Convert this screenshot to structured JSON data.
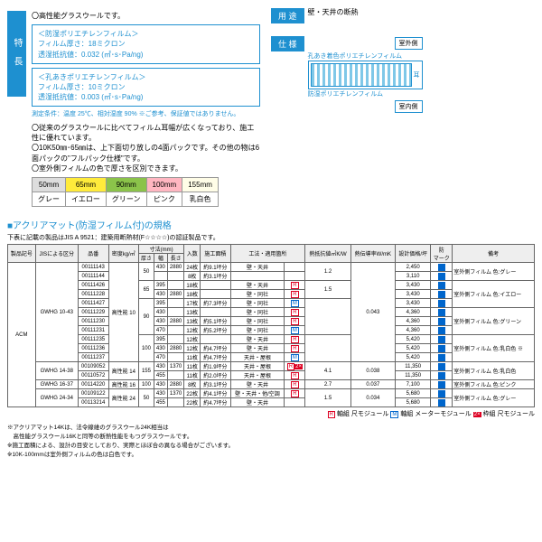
{
  "features": {
    "title": "特 長",
    "l1": "高性能グラスウールです。",
    "box1": {
      "t": "＜防湿ポリエチレンフィルム＞",
      "a": "フィルム厚さ：18ミクロン",
      "b": "透湿抵抗値：0.032 (㎡･s･Pa/ng)"
    },
    "box2": {
      "t": "＜孔あきポリエチレンフィルム＞",
      "a": "フィルム厚さ：10ミクロン",
      "b": "透湿抵抗値：0.003 (㎡･s･Pa/ng)"
    },
    "weather": "測定条件：温度 25℃、相対湿度 90%\n※ご参考、保証値ではありません。",
    "l2": "従来のグラスウールに比べてフィルム耳幅が広くなっており、施工性に優れています。",
    "l3": "10K50㎜･65㎜は、上下面切り放しの4面パックです。その他の物は6面パックの\"フルパック仕様\"です。",
    "l4": "室外側フィルムの色で厚さを区別できます。"
  },
  "usage": {
    "tag": "用 途",
    "text": "壁・天井の断熱"
  },
  "spec_label": "仕 様",
  "diag": {
    "outside": "室外側",
    "inside": "室内側",
    "top": "孔あき着色ポリエチレンフィルム",
    "bottom": "防湿ポリエチレンフィルム",
    "ear": "耳"
  },
  "colortbl": {
    "h": [
      "50mm",
      "65mm",
      "90mm",
      "100mm",
      "155mm"
    ],
    "c": [
      "グレー",
      "イエロー",
      "グリーン",
      "ピンク",
      "乳白色"
    ]
  },
  "spec_title": "■アクリアマット(防湿フィルム付)の規格",
  "spec_note": "下表に記載の製品はJIS A 9521：建築用断熱材(F☆☆☆☆)の認証製品です。",
  "headers": [
    "製品記号",
    "JISによる区分",
    "品番",
    "密度kg/㎥",
    "厚さ",
    "幅",
    "長さ",
    "入数",
    "施工面積",
    "工法・適用箇所",
    "熱抵抗値㎡K/W",
    "熱伝導率W/mK",
    "",
    "設計価格/坪",
    "",
    "備考"
  ],
  "subhdr": "寸法(mm)",
  "rows": [
    {
      "sym": "ACM",
      "jis": "GWHG 10-43",
      "pn": "00111143",
      "den": "高性能 10",
      "th": "50",
      "w": "430",
      "len": "2880",
      "qty": "24枚",
      "area": "約9.1坪分",
      "app": "壁・天井",
      "mod": "",
      "r": "1.2",
      "k": "0.043",
      "p": "2,450",
      "rem": "室外側フィルム 色:グレー"
    },
    {
      "pn": "00111144",
      "qty": "8枚",
      "area": "約3.1坪分",
      "p": "3,110"
    },
    {
      "pn": "00111426",
      "th": "65",
      "w": "395",
      "len": "",
      "qty": "18枚",
      "area": "",
      "app": "壁・天井",
      "mod": "R",
      "r": "1.5",
      "p": "3,430",
      "rem": "室外側フィルム 色:イエロー"
    },
    {
      "pn": "00111228",
      "w": "430",
      "len": "2880",
      "qty": "18枚",
      "area": "",
      "app": "壁・同社",
      "mod": "R",
      "p": "3,430"
    },
    {
      "pn": "00111427",
      "th": "90",
      "w": "395",
      "len": "",
      "qty": "17枚",
      "area": "約7.3坪分",
      "app": "壁・同社",
      "mod": "M",
      "r": "",
      "p": "3,430"
    },
    {
      "pn": "00111229",
      "w": "430",
      "len": "",
      "qty": "13枚",
      "area": "",
      "app": "壁・同社",
      "mod": "R",
      "p": "4,360",
      "rem": "室外側フィルム 色:グリーン"
    },
    {
      "pn": "00111230",
      "w": "430",
      "len": "2880",
      "qty": "13枚",
      "area": "約5.1坪分",
      "app": "壁・同社",
      "mod": "R",
      "p": "4,360"
    },
    {
      "pn": "00111231",
      "w": "470",
      "len": "",
      "qty": "12枚",
      "area": "約5.2坪分",
      "app": "壁・同社",
      "mod": "M",
      "p": "4,360"
    },
    {
      "pn": "00111235",
      "th": "100",
      "w": "395",
      "len": "",
      "qty": "12枚",
      "area": "",
      "app": "壁・天井",
      "mod": "R",
      "r": "",
      "p": "5,420",
      "rem": "室外側フィルム 色:乳白色 ※"
    },
    {
      "pn": "00111236",
      "w": "430",
      "len": "2880",
      "qty": "12枚",
      "area": "約4.7坪分",
      "app": "壁・天井",
      "mod": "R",
      "p": "5,420"
    },
    {
      "pn": "00111237",
      "w": "470",
      "len": "",
      "qty": "11枚",
      "area": "約4.7坪分",
      "app": "天井・屋根",
      "mod": "M",
      "p": "5,420"
    },
    {
      "jis": "GWHG 14-38",
      "pn": "00109052",
      "den": "高性能 14",
      "th": "155",
      "w": "430",
      "len": "1370",
      "qty": "11枚",
      "area": "約1.9坪分",
      "app": "天井・屋根",
      "mod": "R2",
      "r": "4.1",
      "k": "0.038",
      "p": "11,350",
      "rem": "室外側フィルム 色:乳白色"
    },
    {
      "pn": "00110572",
      "w": "455",
      "len": "",
      "qty": "11枚",
      "area": "約2.0坪分",
      "app": "天井・屋根",
      "mod": "R",
      "p": "11,350"
    },
    {
      "jis": "GWHG 16-37",
      "pn": "00114220",
      "den": "高性能 16",
      "th": "100",
      "w": "430",
      "len": "2880",
      "qty": "8枚",
      "area": "約3.1坪分",
      "app": "壁・天井",
      "mod": "R",
      "r": "2.7",
      "k": "0.037",
      "p": "7,100",
      "rem": "室外側フィルム 色:ピンク"
    },
    {
      "jis": "GWHG 24-34",
      "pn": "00109122",
      "den": "高性能 24",
      "th": "50",
      "w": "430",
      "len": "1370",
      "qty": "22枚",
      "area": "約4.1坪分",
      "app": "壁・天井・他/空調",
      "mod": "R",
      "r": "1.5",
      "k": "0.034",
      "p": "5,680",
      "rem": "室外側フィルム 色:グレー"
    },
    {
      "pn": "00113214",
      "w": "455",
      "len": "",
      "qty": "22枚",
      "area": "約4.7坪分",
      "app": "壁・天井",
      "mod": "",
      "p": "5,680"
    }
  ],
  "legend": {
    "r": "軸組 尺モジュール",
    "m": "軸組 メーターモジュール",
    "t": "枠組 尺モジュール"
  },
  "footnotes": [
    "※アクリアマット14Kは、法令線維のグラスウール24K相当は",
    "　高性能グラスウール16Kと同等の断熱性能をもつグラスウールです。",
    "※施工面積による、設計の目安としており、実際とほぼ合の異なる場合がございます。",
    "※10K-100mmは室外側フィルムの色は白色です。"
  ]
}
